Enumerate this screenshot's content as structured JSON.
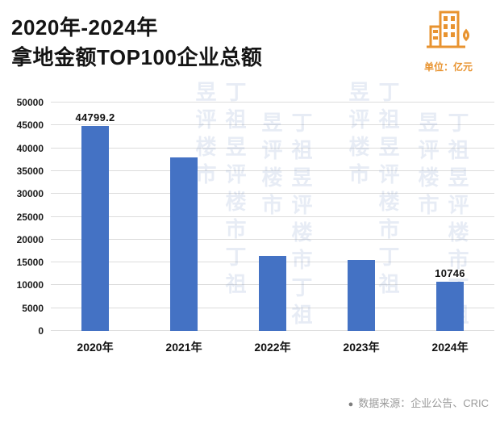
{
  "header": {
    "title_line1": "2020年-2024年",
    "title_line2": "拿地金额TOP100企业总额",
    "unit_label": "单位：亿元",
    "accent_color": "#E8932F"
  },
  "chart_data": {
    "type": "bar",
    "title": "2020年-2024年拿地金额TOP100企业总额",
    "categories": [
      "2020年",
      "2021年",
      "2022年",
      "2023年",
      "2024年"
    ],
    "values": [
      44799.2,
      38000,
      16500,
      15500,
      10746
    ],
    "data_labels": [
      "44799.2",
      "",
      "",
      "",
      "10746"
    ],
    "bar_color": "#4472C4",
    "xlabel": "",
    "ylabel": "",
    "ylim": [
      0,
      50000
    ],
    "ytick_labels": [
      "0",
      "5000",
      "10000",
      "15000",
      "20000",
      "25000",
      "30000",
      "35000",
      "40000",
      "45000",
      "50000"
    ],
    "grid": true,
    "legend": "none"
  },
  "footer": {
    "bullet": "●",
    "source_label": "数据来源：企业公告、CRIC"
  },
  "watermark": {
    "text": "丁祖昱评楼市",
    "color": "#7391c3"
  },
  "icons": {
    "buildings_icon": "city-buildings"
  }
}
